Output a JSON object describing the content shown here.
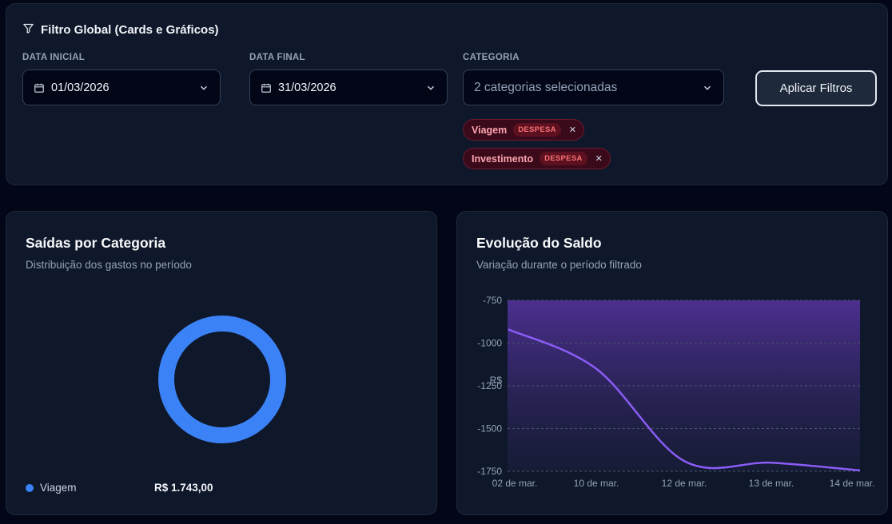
{
  "filter": {
    "title": "Filtro Global (Cards e Gráficos)",
    "start_label": "DATA INICIAL",
    "start_value": "01/03/2026",
    "end_label": "DATA FINAL",
    "end_value": "31/03/2026",
    "category_label": "CATEGORIA",
    "category_value": "2 categorias selecionadas",
    "apply_label": "Aplicar Filtros",
    "chips": [
      {
        "name": "Viagem",
        "badge": "DESPESA"
      },
      {
        "name": "Investimento",
        "badge": "DESPESA"
      }
    ]
  },
  "pie_card": {
    "title": "Saídas por Categoria",
    "subtitle": "Distribuição dos gastos no período",
    "legend": [
      {
        "label": "Viagem",
        "value": "R$ 1.743,00",
        "color": "#3b82f6"
      }
    ]
  },
  "line_card": {
    "title": "Evolução do Saldo",
    "subtitle": "Variação durante o período filtrado",
    "y_unit": "R$"
  },
  "chart_data": [
    {
      "type": "pie",
      "labels": [
        "Viagem"
      ],
      "values": [
        1743.0
      ],
      "colors": [
        "#3b82f6"
      ],
      "title": "Saídas por Categoria"
    },
    {
      "type": "area",
      "title": "Evolução do Saldo",
      "ylabel": "R$",
      "x": [
        "02 de mar.",
        "10 de mar.",
        "12 de mar.",
        "13 de mar.",
        "14 de mar."
      ],
      "series": [
        {
          "values": [
            -920,
            -1150,
            -1690,
            -1700,
            -1745
          ],
          "color": "#8b5cf6"
        }
      ],
      "yticks": [
        "-750",
        "-1000",
        "-1250",
        "-1500",
        "-1750"
      ],
      "ylim": [
        -1750,
        -750
      ],
      "grid": true
    }
  ]
}
